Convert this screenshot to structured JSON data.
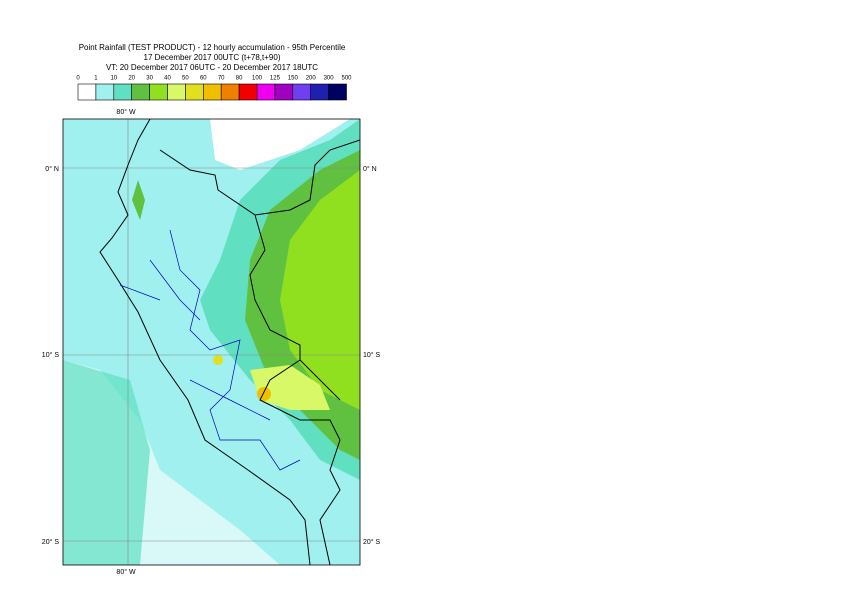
{
  "header": {
    "title": "Point Rainfall (TEST PRODUCT) - 12 hourly accumulation - 95th Percentile",
    "base_time": "17 December 2017 00UTC (t+78,t+90)",
    "valid_time": "VT: 20 December 2017 06UTC - 20 December 2017 18UTC"
  },
  "legend": {
    "labels": [
      "0",
      "1",
      "10",
      "20",
      "30",
      "40",
      "50",
      "60",
      "70",
      "80",
      "100",
      "125",
      "150",
      "200",
      "300",
      "500"
    ],
    "colors": [
      "#ffffff",
      "#a0f0f0",
      "#60e0c0",
      "#60c040",
      "#90e020",
      "#d8f868",
      "#e0e020",
      "#f0c000",
      "#f08000",
      "#f00000",
      "#f000f0",
      "#a000c0",
      "#7040f0",
      "#2020b0",
      "#000060"
    ]
  },
  "map": {
    "lon_labels": [
      "80° W",
      "80° W"
    ],
    "lat_labels": [
      "0° N",
      "10° S",
      "20° S",
      "0° N",
      "10° S",
      "20° S"
    ]
  }
}
